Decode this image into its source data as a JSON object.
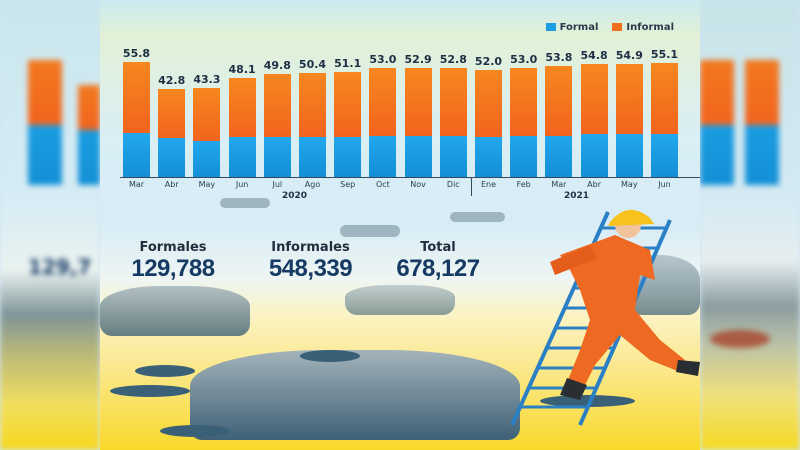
{
  "chart_data": {
    "type": "bar",
    "stacked": true,
    "title": "",
    "xlabel": "",
    "ylabel": "",
    "categories": [
      "Mar",
      "Abr",
      "May",
      "Jun",
      "Jul",
      "Ago",
      "Sep",
      "Oct",
      "Nov",
      "Dic",
      "Ene",
      "Feb",
      "Mar",
      "Abr",
      "May",
      "Jun"
    ],
    "year_groups": [
      {
        "label": "2020",
        "from": 0,
        "to": 9
      },
      {
        "label": "2021",
        "from": 10,
        "to": 15
      }
    ],
    "totals": [
      55.8,
      42.8,
      43.3,
      48.1,
      49.8,
      50.4,
      51.1,
      53.0,
      52.9,
      52.8,
      52.0,
      53.0,
      53.8,
      54.8,
      54.9,
      55.1
    ],
    "series": [
      {
        "name": "Formal",
        "color": "#1a9de2",
        "values": [
          21.3,
          19.0,
          17.6,
          19.3,
          19.3,
          19.3,
          19.5,
          19.8,
          19.8,
          19.8,
          19.6,
          19.9,
          19.9,
          20.8,
          20.8,
          21.0
        ]
      },
      {
        "name": "Informal",
        "color": "#f4701f",
        "values": [
          34.5,
          23.8,
          25.7,
          28.8,
          30.5,
          31.1,
          31.6,
          33.2,
          33.1,
          33.0,
          32.4,
          33.1,
          33.9,
          34.0,
          34.1,
          34.1
        ]
      }
    ],
    "legend_position": "top-right",
    "grid": false,
    "ylim": [
      0,
      60
    ]
  },
  "legend": {
    "formal": "Formal",
    "informal": "Informal"
  },
  "stats": {
    "formales_label": "Formales",
    "formales_value": "129,788",
    "informales_label": "Informales",
    "informales_value": "548,339",
    "total_label": "Total",
    "total_value": "678,127"
  },
  "years": {
    "y2020": "2020",
    "y2021": "2021"
  },
  "colors": {
    "formal": "#1a9de2",
    "informal": "#f4701f",
    "number": "#163a63"
  }
}
